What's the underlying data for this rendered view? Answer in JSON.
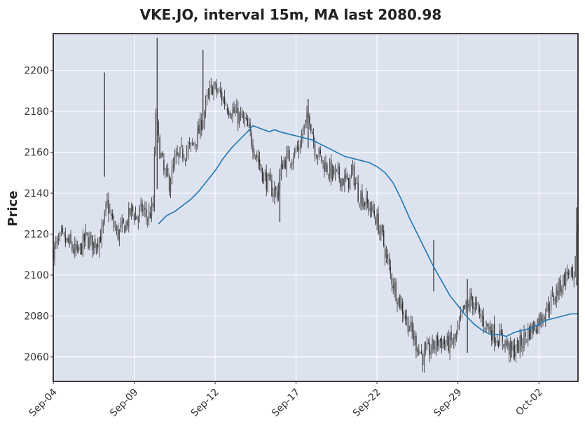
{
  "chart_data": {
    "type": "candlestick",
    "title": "VKE.JO, interval 15m, MA last 2080.98",
    "ylabel": "Price",
    "xlabel": "",
    "ylim": [
      2048,
      2218
    ],
    "yticks": [
      2060,
      2080,
      2100,
      2120,
      2140,
      2160,
      2180,
      2200
    ],
    "x_index_range": [
      0,
      389
    ],
    "xticks": [
      {
        "label": "Sep-04",
        "index": 0
      },
      {
        "label": "Sep-09",
        "index": 60
      },
      {
        "label": "Sep-12",
        "index": 120
      },
      {
        "label": "Sep-17",
        "index": 180
      },
      {
        "label": "Sep-22",
        "index": 240
      },
      {
        "label": "Sep-29",
        "index": 300
      },
      {
        "label": "Oct-02",
        "index": 360
      }
    ],
    "grid": true,
    "colors": {
      "background": "#dde2ef",
      "grid": "#ffffff",
      "candle": "#2b2b2b",
      "ma": "#1f77b4"
    },
    "price_path": [
      [
        0,
        2112
      ],
      [
        6,
        2118
      ],
      [
        12,
        2115
      ],
      [
        18,
        2110
      ],
      [
        24,
        2118
      ],
      [
        30,
        2115
      ],
      [
        36,
        2120
      ],
      [
        40,
        2135
      ],
      [
        44,
        2125
      ],
      [
        48,
        2120
      ],
      [
        54,
        2125
      ],
      [
        58,
        2132
      ],
      [
        62,
        2128
      ],
      [
        66,
        2132
      ],
      [
        70,
        2128
      ],
      [
        74,
        2133
      ],
      [
        76,
        2180
      ],
      [
        78,
        2165
      ],
      [
        82,
        2150
      ],
      [
        86,
        2145
      ],
      [
        90,
        2155
      ],
      [
        96,
        2160
      ],
      [
        102,
        2162
      ],
      [
        108,
        2170
      ],
      [
        114,
        2185
      ],
      [
        118,
        2192
      ],
      [
        124,
        2188
      ],
      [
        130,
        2182
      ],
      [
        136,
        2178
      ],
      [
        142,
        2175
      ],
      [
        146,
        2168
      ],
      [
        150,
        2160
      ],
      [
        156,
        2148
      ],
      [
        162,
        2142
      ],
      [
        166,
        2140
      ],
      [
        170,
        2155
      ],
      [
        176,
        2158
      ],
      [
        182,
        2162
      ],
      [
        186,
        2172
      ],
      [
        190,
        2178
      ],
      [
        194,
        2162
      ],
      [
        200,
        2155
      ],
      [
        206,
        2150
      ],
      [
        212,
        2148
      ],
      [
        218,
        2145
      ],
      [
        222,
        2150
      ],
      [
        226,
        2140
      ],
      [
        232,
        2135
      ],
      [
        238,
        2130
      ],
      [
        244,
        2118
      ],
      [
        250,
        2100
      ],
      [
        256,
        2088
      ],
      [
        262,
        2078
      ],
      [
        268,
        2068
      ],
      [
        274,
        2060
      ],
      [
        280,
        2064
      ],
      [
        286,
        2068
      ],
      [
        292,
        2066
      ],
      [
        298,
        2068
      ],
      [
        304,
        2082
      ],
      [
        310,
        2088
      ],
      [
        316,
        2080
      ],
      [
        322,
        2075
      ],
      [
        328,
        2070
      ],
      [
        334,
        2068
      ],
      [
        340,
        2062
      ],
      [
        346,
        2066
      ],
      [
        352,
        2072
      ],
      [
        358,
        2076
      ],
      [
        364,
        2082
      ],
      [
        370,
        2088
      ],
      [
        376,
        2095
      ],
      [
        382,
        2102
      ],
      [
        386,
        2095
      ],
      [
        389,
        2128
      ]
    ],
    "spikes": [
      {
        "index": 38,
        "low": 2148,
        "high": 2199
      },
      {
        "index": 77,
        "low": 2142,
        "high": 2216
      },
      {
        "index": 111,
        "low": 2178,
        "high": 2210
      },
      {
        "index": 168,
        "low": 2126,
        "high": 2152
      },
      {
        "index": 189,
        "low": 2162,
        "high": 2186
      },
      {
        "index": 282,
        "low": 2092,
        "high": 2117
      },
      {
        "index": 307,
        "low": 2062,
        "high": 2098
      },
      {
        "index": 388,
        "low": 2095,
        "high": 2133
      }
    ],
    "ma_series": {
      "start_index": 78,
      "values": [
        [
          78,
          2125
        ],
        [
          84,
          2129
        ],
        [
          90,
          2131
        ],
        [
          96,
          2134
        ],
        [
          102,
          2137
        ],
        [
          108,
          2141
        ],
        [
          114,
          2146
        ],
        [
          120,
          2151
        ],
        [
          126,
          2157
        ],
        [
          132,
          2162
        ],
        [
          138,
          2166
        ],
        [
          144,
          2170
        ],
        [
          148,
          2173
        ],
        [
          152,
          2172
        ],
        [
          156,
          2171
        ],
        [
          160,
          2170
        ],
        [
          164,
          2171
        ],
        [
          168,
          2170
        ],
        [
          174,
          2169
        ],
        [
          180,
          2168
        ],
        [
          186,
          2167
        ],
        [
          192,
          2166
        ],
        [
          198,
          2164
        ],
        [
          204,
          2162
        ],
        [
          210,
          2160
        ],
        [
          216,
          2158
        ],
        [
          222,
          2157
        ],
        [
          228,
          2156
        ],
        [
          234,
          2155
        ],
        [
          240,
          2153
        ],
        [
          246,
          2150
        ],
        [
          252,
          2145
        ],
        [
          258,
          2137
        ],
        [
          264,
          2128
        ],
        [
          270,
          2120
        ],
        [
          276,
          2112
        ],
        [
          282,
          2104
        ],
        [
          288,
          2097
        ],
        [
          294,
          2090
        ],
        [
          300,
          2085
        ],
        [
          306,
          2080
        ],
        [
          312,
          2076
        ],
        [
          318,
          2073
        ],
        [
          324,
          2071
        ],
        [
          330,
          2071
        ],
        [
          336,
          2070
        ],
        [
          342,
          2072
        ],
        [
          348,
          2073
        ],
        [
          354,
          2074
        ],
        [
          360,
          2076
        ],
        [
          366,
          2078
        ],
        [
          372,
          2079
        ],
        [
          378,
          2080
        ],
        [
          384,
          2081
        ],
        [
          389,
          2081
        ]
      ]
    }
  }
}
